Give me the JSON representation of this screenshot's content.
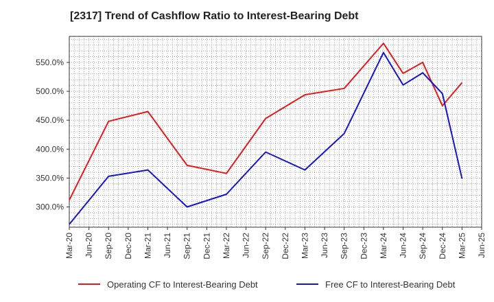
{
  "chart_data": {
    "type": "line",
    "title": "[2317]  Trend of Cashflow Ratio to Interest-Bearing Debt",
    "xlabel": "",
    "ylabel": "",
    "x": [
      "Mar-20",
      "Jun-20",
      "Sep-20",
      "Dec-20",
      "Mar-21",
      "Jun-21",
      "Sep-21",
      "Dec-21",
      "Mar-22",
      "Jun-22",
      "Sep-22",
      "Dec-22",
      "Mar-23",
      "Jun-23",
      "Sep-23",
      "Dec-23",
      "Mar-24",
      "Jun-24",
      "Sep-24",
      "Dec-24",
      "Mar-25",
      "Jun-25"
    ],
    "ylim": [
      265,
      595
    ],
    "yticks": [
      300,
      350,
      400,
      450,
      500,
      550
    ],
    "ytick_labels": [
      "300.0%",
      "350.0%",
      "400.0%",
      "450.0%",
      "500.0%",
      "550.0%"
    ],
    "grid": true,
    "legend_position": "bottom",
    "series": [
      {
        "name": "Operating CF to Interest-Bearing Debt",
        "color": "#e31a1c",
        "points": [
          {
            "x": "Mar-20",
            "y": 312
          },
          {
            "x": "Sep-20",
            "y": 448
          },
          {
            "x": "Mar-21",
            "y": 465
          },
          {
            "x": "Sep-21",
            "y": 372
          },
          {
            "x": "Mar-22",
            "y": 358
          },
          {
            "x": "Sep-22",
            "y": 453
          },
          {
            "x": "Mar-23",
            "y": 494
          },
          {
            "x": "Sep-23",
            "y": 505
          },
          {
            "x": "Mar-24",
            "y": 583
          },
          {
            "x": "Jun-24",
            "y": 531
          },
          {
            "x": "Sep-24",
            "y": 550
          },
          {
            "x": "Dec-24",
            "y": 475
          },
          {
            "x": "Mar-25",
            "y": 515
          }
        ]
      },
      {
        "name": "Free CF to Interest-Bearing Debt",
        "color": "#1414c8",
        "points": [
          {
            "x": "Mar-20",
            "y": 270
          },
          {
            "x": "Sep-20",
            "y": 353
          },
          {
            "x": "Mar-21",
            "y": 364
          },
          {
            "x": "Sep-21",
            "y": 300
          },
          {
            "x": "Mar-22",
            "y": 322
          },
          {
            "x": "Sep-22",
            "y": 395
          },
          {
            "x": "Mar-23",
            "y": 364
          },
          {
            "x": "Sep-23",
            "y": 427
          },
          {
            "x": "Mar-24",
            "y": 567
          },
          {
            "x": "Jun-24",
            "y": 511
          },
          {
            "x": "Sep-24",
            "y": 532
          },
          {
            "x": "Dec-24",
            "y": 496
          },
          {
            "x": "Mar-25",
            "y": 349
          }
        ]
      }
    ]
  }
}
